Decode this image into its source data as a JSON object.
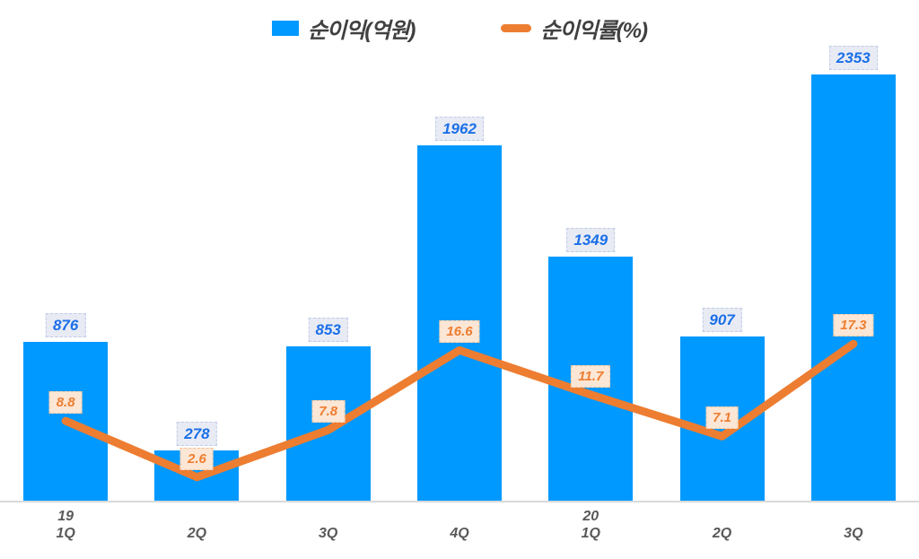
{
  "chart_data": {
    "type": "combo",
    "title": "",
    "categories": [
      {
        "year": "19",
        "quarter": "1Q"
      },
      {
        "year": "",
        "quarter": "2Q"
      },
      {
        "year": "",
        "quarter": "3Q"
      },
      {
        "year": "",
        "quarter": "4Q"
      },
      {
        "year": "20",
        "quarter": "1Q"
      },
      {
        "year": "",
        "quarter": "2Q"
      },
      {
        "year": "",
        "quarter": "3Q"
      }
    ],
    "series": [
      {
        "name": "순이익(억원)",
        "type": "bar",
        "color": "#0099FF",
        "values": [
          876,
          278,
          853,
          1962,
          1349,
          907,
          2353
        ],
        "ylim": [
          0,
          2500
        ],
        "label_text_color": "#1B6FE8",
        "label_bg": "#E8EBF4"
      },
      {
        "name": "순이익률(%)",
        "type": "line",
        "color": "#ED7D31",
        "values": [
          8.8,
          2.6,
          7.8,
          16.6,
          11.7,
          7.1,
          17.3
        ],
        "ylim": [
          0,
          50
        ],
        "label_text_color": "#ED7D31",
        "label_bg": "#FCE6D5"
      }
    ],
    "grid": false,
    "legend_position": "top-center",
    "axis_line_color": "#D9D9D9",
    "x_label_color": "#595959"
  }
}
